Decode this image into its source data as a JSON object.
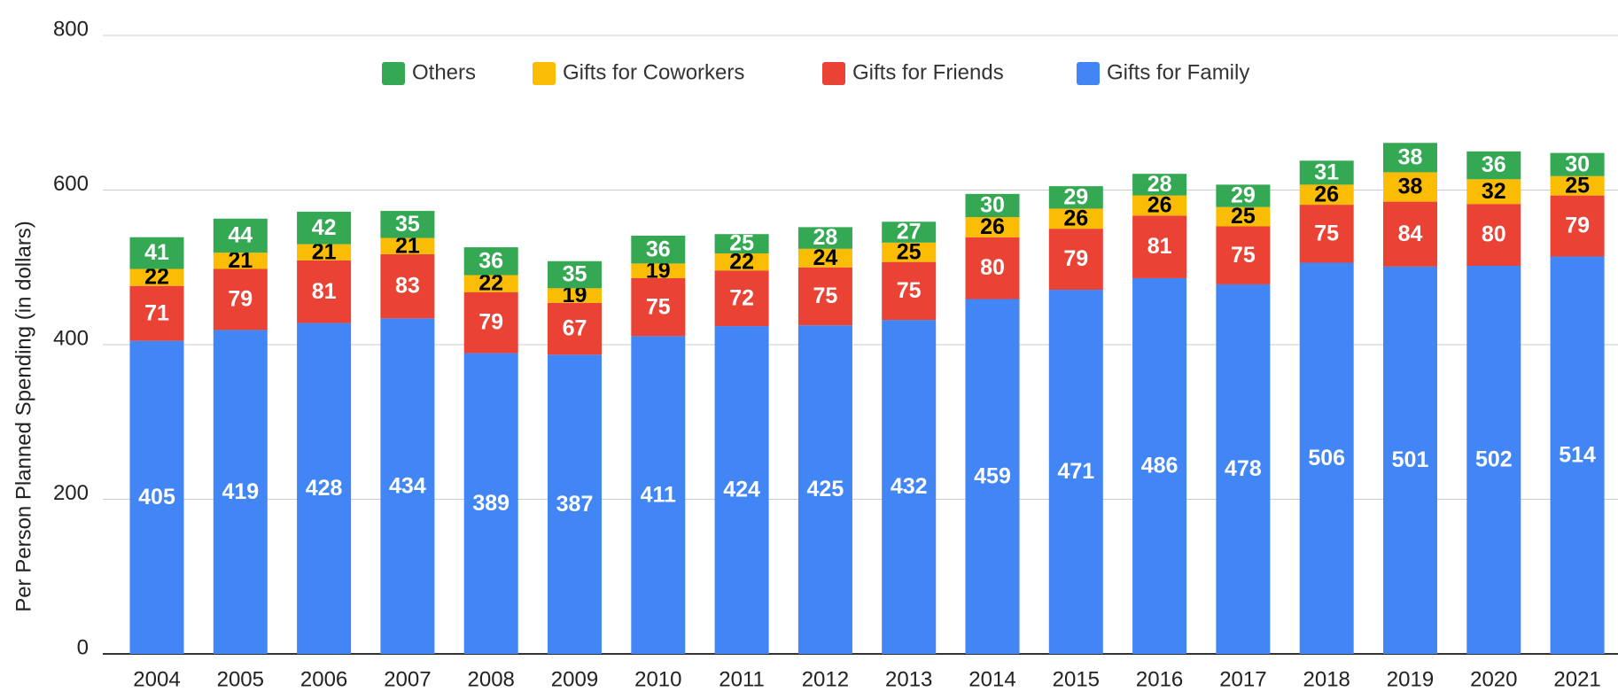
{
  "chart_data": {
    "type": "stacked_bar",
    "y_label": "Per Person Planned Spending (in dollars)",
    "categories": [
      "2004",
      "2005",
      "2006",
      "2007",
      "2008",
      "2009",
      "2010",
      "2011",
      "2012",
      "2013",
      "2014",
      "2015",
      "2016",
      "2017",
      "2018",
      "2019",
      "2020",
      "2021"
    ],
    "series": [
      {
        "name": "Gifts for Family",
        "color": "#4285f4",
        "values": [
          405,
          419,
          428,
          434,
          389,
          387,
          411,
          424,
          425,
          432,
          459,
          471,
          486,
          478,
          506,
          501,
          502,
          514
        ]
      },
      {
        "name": "Gifts for Friends",
        "color": "#ea4335",
        "values": [
          71,
          79,
          81,
          83,
          79,
          67,
          75,
          72,
          75,
          75,
          80,
          79,
          81,
          75,
          75,
          84,
          80,
          79
        ]
      },
      {
        "name": "Gifts for Coworkers",
        "color": "#fbbc04",
        "values": [
          22,
          21,
          21,
          21,
          22,
          19,
          19,
          22,
          24,
          25,
          26,
          26,
          26,
          25,
          26,
          38,
          32,
          25
        ]
      },
      {
        "name": "Others",
        "color": "#34a853",
        "values": [
          41,
          44,
          42,
          35,
          36,
          35,
          36,
          25,
          28,
          27,
          30,
          29,
          28,
          29,
          31,
          38,
          36,
          30
        ]
      }
    ],
    "ylim": [
      0,
      800
    ],
    "yticks": [
      0,
      200,
      400,
      600,
      800
    ],
    "grid": true,
    "legend": "top"
  }
}
